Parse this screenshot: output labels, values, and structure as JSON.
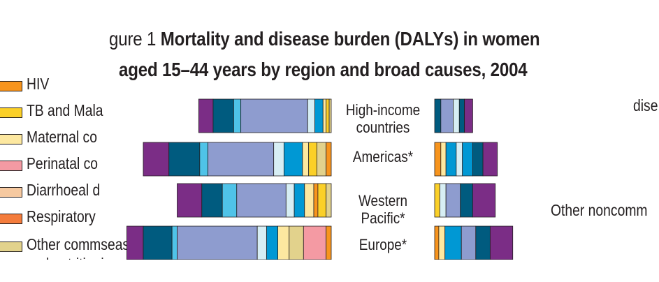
{
  "title": {
    "line1_prefix": "gure 1",
    "line1_main": "Mortality and disease burden (DALYs) in women",
    "line2": "aged 15–44 years by region and broad causes, 2004"
  },
  "legend": [
    {
      "label": "HIV",
      "color": "#f7941d"
    },
    {
      "label": "TB and Mala",
      "color": "#fbd028"
    },
    {
      "label": "Maternal co",
      "color": "#fde8a0"
    },
    {
      "label": "Perinatal co",
      "color": "#f49aa3"
    },
    {
      "label": "Diarrhoeal d",
      "color": "#f6c9a0"
    },
    {
      "label": "Respiratory",
      "color": "#f47c3c"
    },
    {
      "label": "Other comm",
      "label_overlap": "seases",
      "label2": "and nutrition",
      "label2_overlap": "ies",
      "color": "#e2d28c"
    }
  ],
  "side_labels": {
    "top_right": "dise",
    "middle_right": "Other noncomm"
  },
  "chart_data": {
    "type": "bar",
    "orientation": "horizontal",
    "stacked": true,
    "categories": [
      "High-income countries",
      "Americas*",
      "Western Pacific*",
      "Europe*"
    ],
    "category_lines": [
      [
        "High-income",
        "countries"
      ],
      [
        "Americas*"
      ],
      [
        "Western",
        "Pacific*"
      ],
      [
        "Europe*"
      ]
    ],
    "unit": "share of bar length (relative, estimated)",
    "series_colors": {
      "purple": "#7b2d86",
      "dark_teal": "#005b7f",
      "light_blue": "#4fc3e8",
      "periwinkle": "#8e9ccf",
      "pale_cyan": "#d7eef4",
      "blue": "#0098d4",
      "orange": "#f7941d",
      "gold": "#fbd028",
      "cream": "#fde8a0",
      "pink": "#f49aa3",
      "tan": "#e2d28c"
    },
    "mortality": [
      {
        "category": "High-income countries",
        "segments": [
          {
            "series": "purple",
            "value": 14
          },
          {
            "series": "dark_teal",
            "value": 20
          },
          {
            "series": "light_blue",
            "value": 7
          },
          {
            "series": "periwinkle",
            "value": 65
          },
          {
            "series": "pale_cyan",
            "value": 7
          },
          {
            "series": "blue",
            "value": 8
          },
          {
            "series": "cream",
            "value": 3
          },
          {
            "series": "gold",
            "value": 3
          },
          {
            "series": "tan",
            "value": 2
          }
        ]
      },
      {
        "category": "Americas*",
        "segments": [
          {
            "series": "purple",
            "value": 25
          },
          {
            "series": "dark_teal",
            "value": 30
          },
          {
            "series": "light_blue",
            "value": 8
          },
          {
            "series": "periwinkle",
            "value": 64
          },
          {
            "series": "pale_cyan",
            "value": 10
          },
          {
            "series": "blue",
            "value": 18
          },
          {
            "series": "cream",
            "value": 6
          },
          {
            "series": "gold",
            "value": 8
          },
          {
            "series": "tan",
            "value": 9
          },
          {
            "series": "orange",
            "value": 5
          }
        ]
      },
      {
        "category": "Western Pacific*",
        "segments": [
          {
            "series": "purple",
            "value": 24
          },
          {
            "series": "dark_teal",
            "value": 20
          },
          {
            "series": "light_blue",
            "value": 14
          },
          {
            "series": "periwinkle",
            "value": 48
          },
          {
            "series": "pale_cyan",
            "value": 8
          },
          {
            "series": "blue",
            "value": 10
          },
          {
            "series": "cream",
            "value": 9
          },
          {
            "series": "orange",
            "value": 4
          },
          {
            "series": "gold",
            "value": 8
          },
          {
            "series": "tan",
            "value": 5
          }
        ]
      },
      {
        "category": "Europe*",
        "segments": [
          {
            "series": "purple",
            "value": 16
          },
          {
            "series": "dark_teal",
            "value": 28
          },
          {
            "series": "light_blue",
            "value": 5
          },
          {
            "series": "periwinkle",
            "value": 78
          },
          {
            "series": "pale_cyan",
            "value": 9
          },
          {
            "series": "blue",
            "value": 11
          },
          {
            "series": "cream",
            "value": 11
          },
          {
            "series": "tan",
            "value": 14
          },
          {
            "series": "pink",
            "value": 22
          },
          {
            "series": "orange",
            "value": 5
          }
        ]
      }
    ],
    "dalys": [
      {
        "category": "High-income countries",
        "segments": [
          {
            "series": "dark_teal",
            "value": 6
          },
          {
            "series": "periwinkle",
            "value": 12
          },
          {
            "series": "pale_cyan",
            "value": 6
          },
          {
            "series": "dark_teal",
            "value": 5
          },
          {
            "series": "purple",
            "value": 8
          }
        ]
      },
      {
        "category": "Americas*",
        "segments": [
          {
            "series": "orange",
            "value": 6
          },
          {
            "series": "cream",
            "value": 5
          },
          {
            "series": "blue",
            "value": 10
          },
          {
            "series": "pale_cyan",
            "value": 6
          },
          {
            "series": "blue",
            "value": 10
          },
          {
            "series": "dark_teal",
            "value": 10
          },
          {
            "series": "purple",
            "value": 14
          }
        ]
      },
      {
        "category": "Western Pacific*",
        "segments": [
          {
            "series": "gold",
            "value": 5
          },
          {
            "series": "pale_cyan",
            "value": 6
          },
          {
            "series": "periwinkle",
            "value": 14
          },
          {
            "series": "dark_teal",
            "value": 12
          },
          {
            "series": "purple",
            "value": 22
          }
        ]
      },
      {
        "category": "Europe*",
        "segments": [
          {
            "series": "orange",
            "value": 4
          },
          {
            "series": "cream",
            "value": 6
          },
          {
            "series": "blue",
            "value": 16
          },
          {
            "series": "periwinkle",
            "value": 14
          },
          {
            "series": "dark_teal",
            "value": 14
          },
          {
            "series": "purple",
            "value": 22
          }
        ]
      }
    ]
  }
}
